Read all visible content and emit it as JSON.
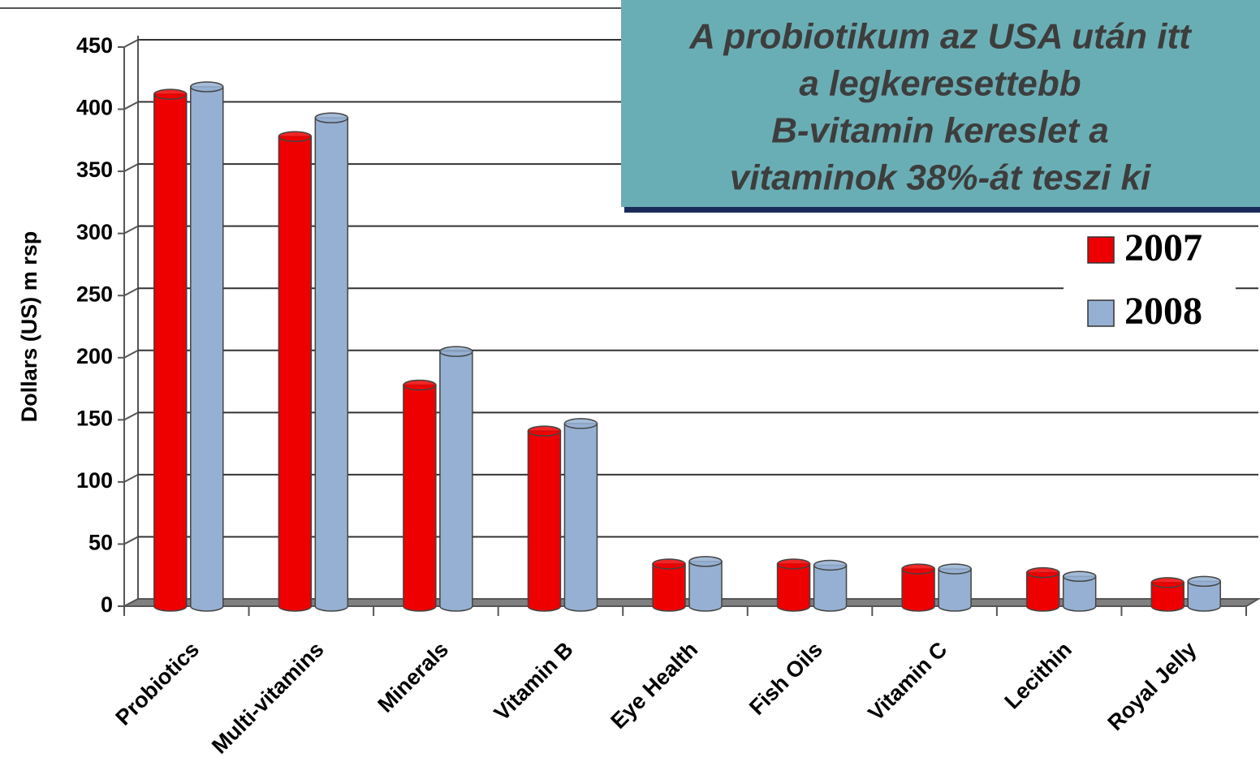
{
  "chart_data": {
    "type": "bar",
    "y_label": "Dollars (US) m rsp",
    "categories": [
      "Probiotics",
      "Multi-vitamins",
      "Minerals",
      "Vitamin B",
      "Eye Health",
      "Fish Oils",
      "Vitamin C",
      "Lecithin",
      "Royal Jelly"
    ],
    "series": [
      {
        "name": "2007",
        "color": "#ee0000",
        "values": [
          412,
          378,
          178,
          141,
          34,
          34,
          30,
          27,
          19
        ]
      },
      {
        "name": "2008",
        "color": "#95b0d2",
        "values": [
          418,
          393,
          205,
          147,
          36,
          33,
          30,
          24,
          20
        ]
      }
    ],
    "ylim": [
      0,
      450
    ],
    "yticks": [
      0,
      50,
      100,
      150,
      200,
      250,
      300,
      350,
      400,
      450
    ],
    "grid": true,
    "annotation": [
      "A probiotikum az USA után itt",
      "a legkeresettebb",
      "B-vitamin kereslet a",
      "vitaminok 38%-át teszi ki"
    ]
  }
}
